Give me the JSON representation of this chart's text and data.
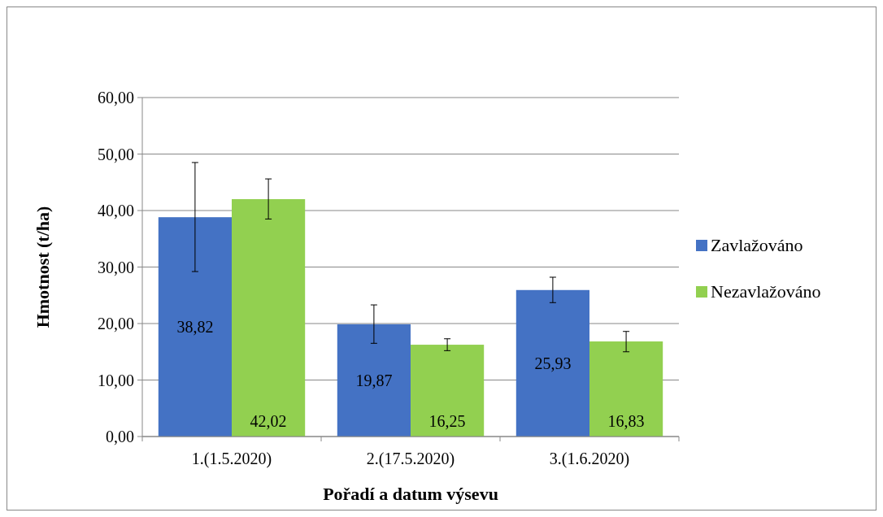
{
  "chart_data": {
    "type": "bar",
    "xlabel": "Pořadí a datum výsevu",
    "ylabel": "Hmotnost (t/ha)",
    "categories": [
      "1.(1.5.2020)",
      "2.(17.5.2020)",
      "3.(1.6.2020)"
    ],
    "series": [
      {
        "name": "Zavlažováno",
        "color": "#4472c4",
        "values": [
          38.82,
          19.87,
          25.93
        ],
        "errors": [
          [
            29.2,
            48.5
          ],
          [
            16.5,
            23.3
          ],
          [
            23.7,
            28.2
          ]
        ],
        "value_labels": [
          "38,82",
          "19,87",
          "25,93"
        ]
      },
      {
        "name": "Nezavlažováno",
        "color": "#92d050",
        "values": [
          42.02,
          16.25,
          16.83
        ],
        "errors": [
          [
            38.5,
            45.6
          ],
          [
            15.2,
            17.3
          ],
          [
            15.0,
            18.6
          ]
        ],
        "value_labels": [
          "42,02",
          "16,25",
          "16,83"
        ]
      }
    ],
    "ylim": [
      0,
      60
    ],
    "yticks": [
      {
        "value": 0,
        "label": "0,00"
      },
      {
        "value": 10,
        "label": "10,00"
      },
      {
        "value": 20,
        "label": "20,00"
      },
      {
        "value": 30,
        "label": "30,00"
      },
      {
        "value": 40,
        "label": "40,00"
      },
      {
        "value": 50,
        "label": "50,00"
      },
      {
        "value": 60,
        "label": "60,00"
      }
    ],
    "grid": "y",
    "legend": "right"
  }
}
